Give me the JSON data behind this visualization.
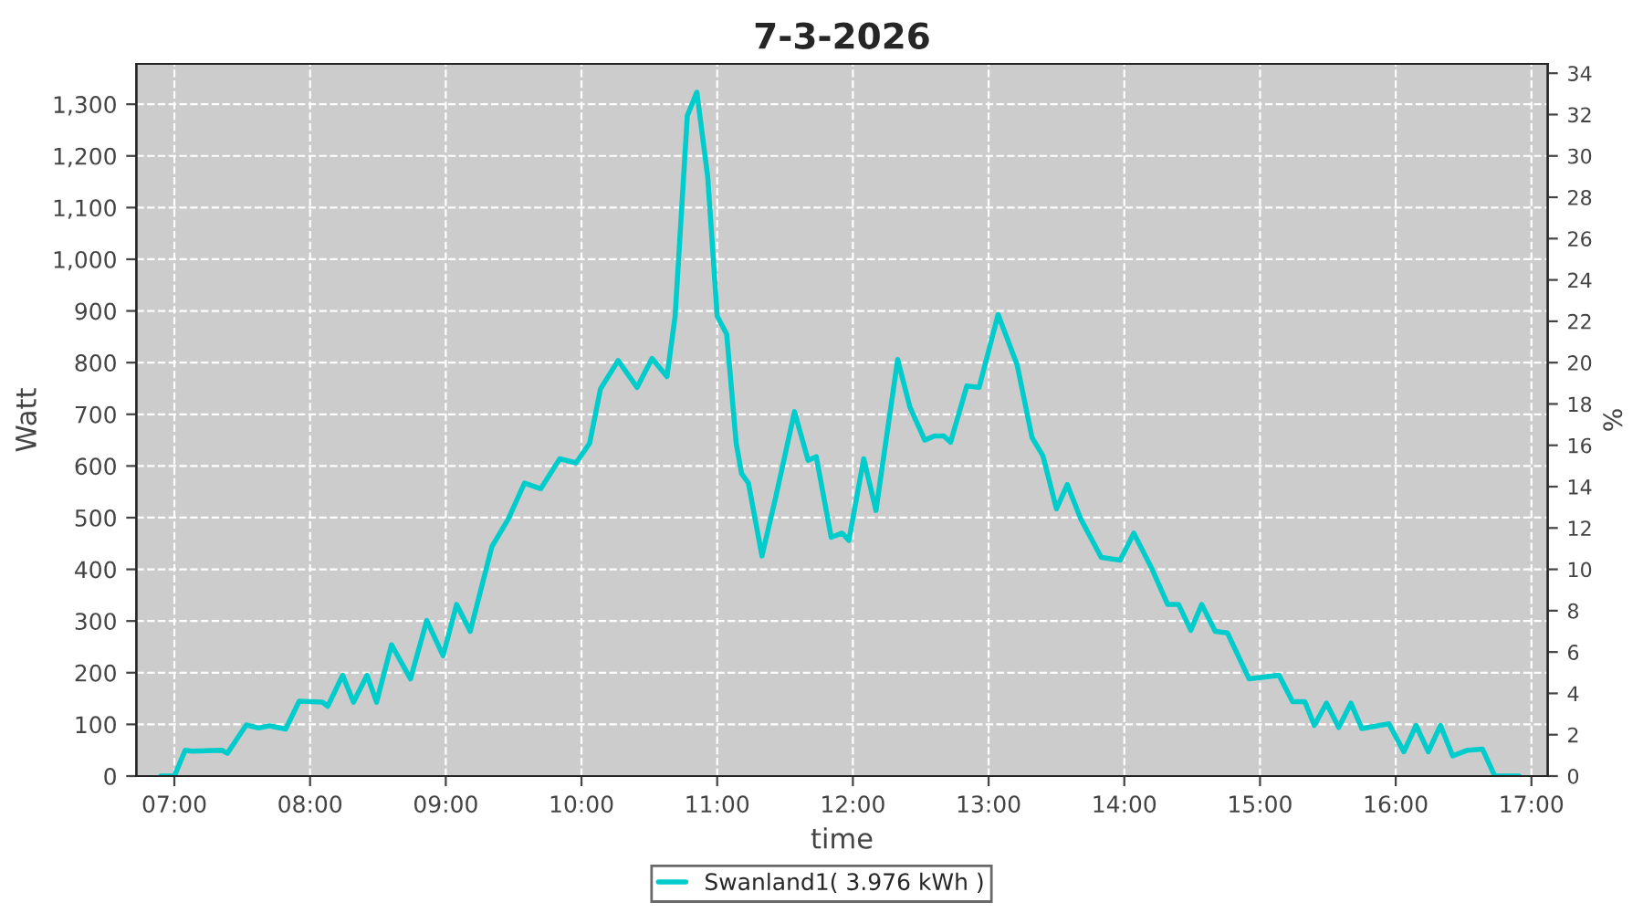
{
  "chart_data": {
    "type": "line",
    "title": "7-3-2026",
    "xlabel": "time",
    "ylabel": "Watt",
    "y2label": "%",
    "xlim": [
      6.72,
      17.12
    ],
    "xticks": [
      {
        "value": 7,
        "label": "07:00"
      },
      {
        "value": 8,
        "label": "08:00"
      },
      {
        "value": 9,
        "label": "09:00"
      },
      {
        "value": 10,
        "label": "10:00"
      },
      {
        "value": 11,
        "label": "11:00"
      },
      {
        "value": 12,
        "label": "12:00"
      },
      {
        "value": 13,
        "label": "13:00"
      },
      {
        "value": 14,
        "label": "14:00"
      },
      {
        "value": 15,
        "label": "15:00"
      },
      {
        "value": 16,
        "label": "16:00"
      },
      {
        "value": 17,
        "label": "17:00"
      }
    ],
    "ylim": [
      0,
      1378
    ],
    "yticks": [
      0,
      100,
      200,
      300,
      400,
      500,
      600,
      700,
      800,
      900,
      {
        "value": 1000,
        "label": "1,000"
      },
      {
        "value": 1100,
        "label": "1,100"
      },
      {
        "value": 1200,
        "label": "1,200"
      },
      {
        "value": 1300,
        "label": "1,300"
      }
    ],
    "y2lim": [
      0,
      34.45
    ],
    "y2ticks": [
      0,
      2,
      4,
      6,
      8,
      10,
      12,
      14,
      16,
      18,
      20,
      22,
      24,
      26,
      28,
      30,
      32,
      34
    ],
    "grid": true,
    "legend": "bottom",
    "line_style": "solid",
    "marker": "none",
    "series": [
      {
        "name": "Swanland1( 3.976 kWh )",
        "color": "#00cccc",
        "x": [
          6.9,
          7.0,
          7.08,
          7.13,
          7.35,
          7.39,
          7.53,
          7.62,
          7.7,
          7.82,
          7.92,
          8.09,
          8.13,
          8.24,
          8.32,
          8.42,
          8.49,
          8.6,
          8.74,
          8.86,
          8.98,
          9.08,
          9.18,
          9.34,
          9.46,
          9.58,
          9.7,
          9.84,
          9.96,
          10.06,
          10.14,
          10.27,
          10.41,
          10.52,
          10.63,
          10.69,
          10.78,
          10.85,
          10.93,
          11.0,
          11.07,
          11.14,
          11.18,
          11.23,
          11.33,
          11.43,
          11.57,
          11.67,
          11.73,
          11.84,
          11.92,
          11.97,
          12.08,
          12.17,
          12.33,
          12.42,
          12.53,
          12.6,
          12.67,
          12.72,
          12.84,
          12.93,
          13.07,
          13.21,
          13.32,
          13.4,
          13.5,
          13.58,
          13.68,
          13.83,
          13.97,
          14.07,
          14.2,
          14.32,
          14.4,
          14.49,
          14.57,
          14.67,
          14.76,
          14.92,
          15.14,
          15.24,
          15.33,
          15.4,
          15.49,
          15.58,
          15.67,
          15.75,
          15.95,
          16.06,
          16.15,
          16.24,
          16.33,
          16.42,
          16.53,
          16.64,
          16.73,
          16.91
        ],
        "values": [
          0,
          0,
          50,
          48,
          50,
          44,
          99,
          93,
          97,
          91,
          145,
          143,
          135,
          195,
          143,
          195,
          143,
          254,
          188,
          301,
          233,
          332,
          280,
          444,
          497,
          567,
          556,
          614,
          606,
          644,
          749,
          804,
          752,
          808,
          773,
          890,
          1278,
          1323,
          1160,
          890,
          855,
          644,
          585,
          567,
          426,
          538,
          705,
          611,
          618,
          462,
          470,
          456,
          614,
          514,
          806,
          714,
          650,
          658,
          658,
          646,
          755,
          752,
          893,
          796,
          655,
          620,
          517,
          564,
          497,
          423,
          418,
          470,
          403,
          332,
          332,
          282,
          332,
          280,
          277,
          188,
          195,
          144,
          144,
          98,
          141,
          94,
          141,
          92,
          101,
          47,
          98,
          47,
          98,
          39,
          50,
          52,
          0,
          0
        ]
      }
    ]
  }
}
